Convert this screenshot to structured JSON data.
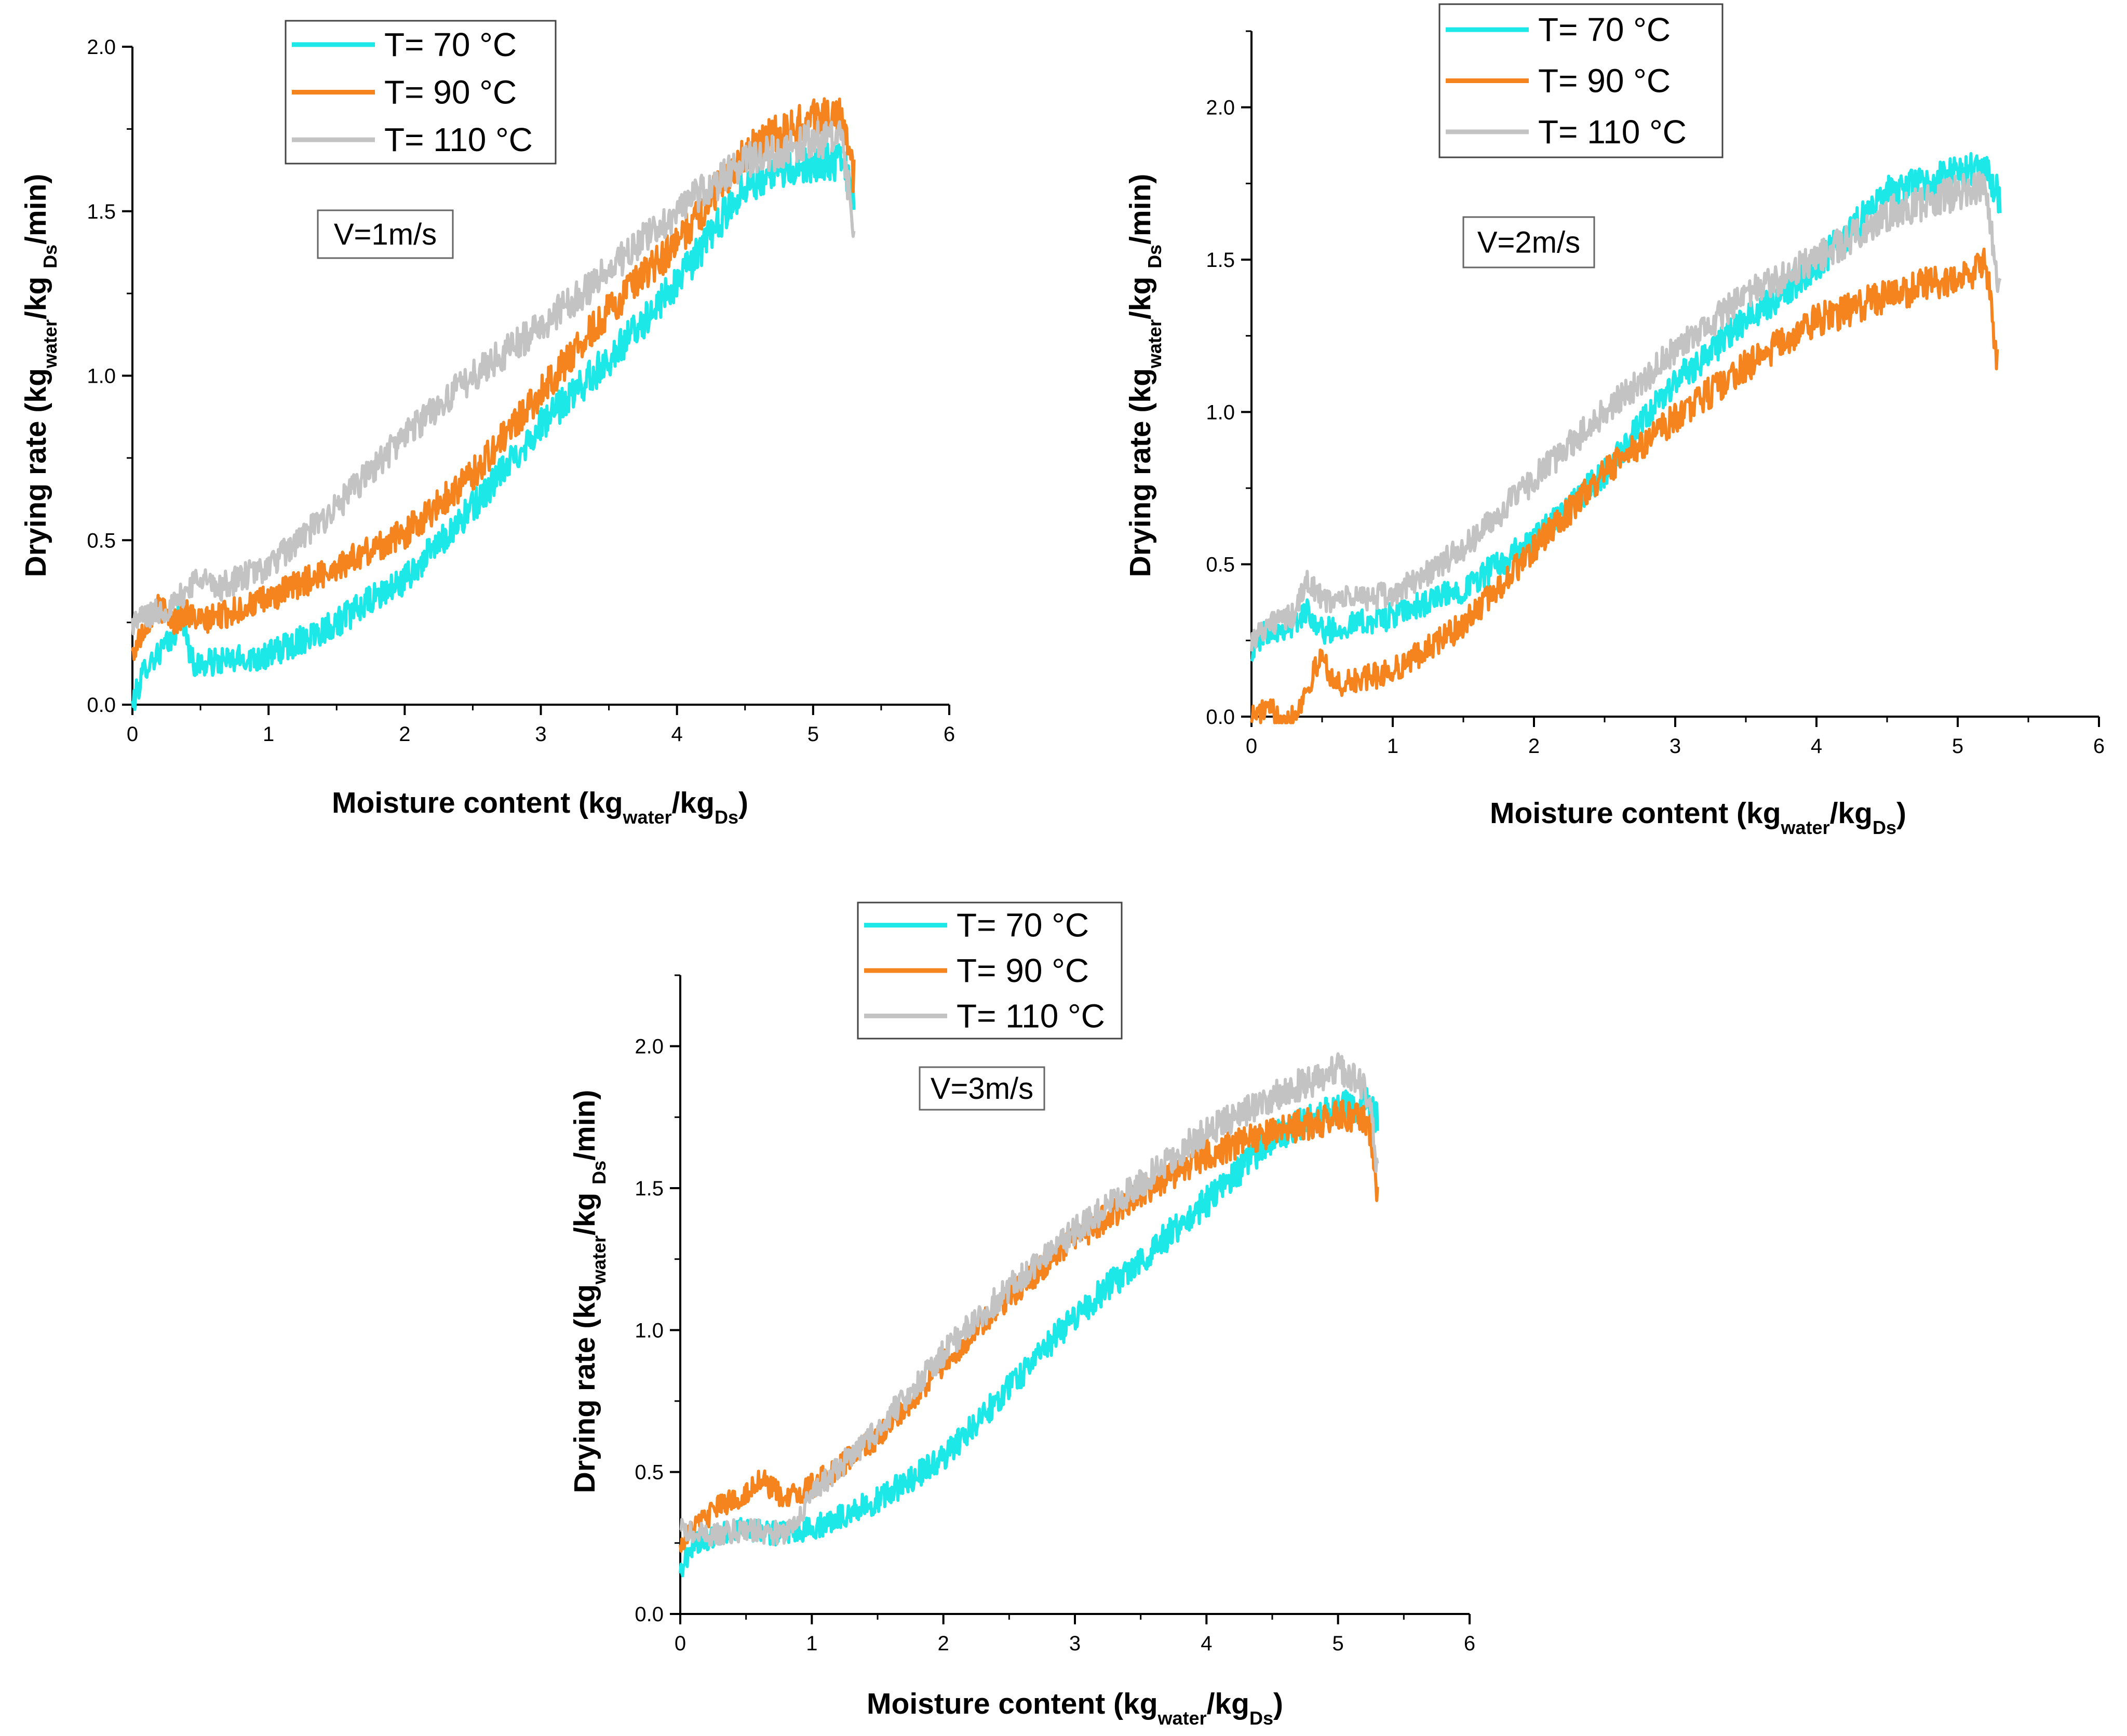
{
  "chart_data": [
    {
      "type": "line",
      "annotation": "V=1m/s",
      "xlabel": {
        "main": "Moisture content (kg",
        "sub1": "water",
        "mid": "/kg",
        "sub2": "Ds",
        "end": ")"
      },
      "ylabel": {
        "main": "Drying rate (kg",
        "sub1": "water",
        "mid": "/kg ",
        "sub2": "Ds",
        "end": "/min)"
      },
      "xlim": [
        0,
        6
      ],
      "ylim": [
        0,
        2.0
      ],
      "xticks": [
        "0",
        "1",
        "2",
        "3",
        "4",
        "5",
        "6"
      ],
      "yticks": [
        "0.0",
        "0.5",
        "1.0",
        "1.5",
        "2.0"
      ],
      "legend": [
        "T= 70 °C",
        "T= 90 °C",
        "T= 110 °C"
      ],
      "colors": [
        "#1de8e8",
        "#f5841f",
        "#c3c3c3"
      ],
      "series": [
        {
          "name": "T= 70 °C",
          "x": [
            0,
            0.1,
            0.3,
            0.35,
            0.4,
            0.45,
            1.0,
            1.5,
            2.0,
            2.5,
            3.0,
            3.5,
            4.0,
            4.5,
            5.0,
            5.2,
            5.25,
            5.3
          ],
          "y": [
            0.0,
            0.12,
            0.2,
            0.3,
            0.2,
            0.12,
            0.15,
            0.25,
            0.38,
            0.6,
            0.85,
            1.05,
            1.28,
            1.58,
            1.65,
            1.65,
            1.6,
            1.55
          ]
        },
        {
          "name": "T= 90 °C",
          "x": [
            0,
            0.1,
            0.2,
            0.3,
            0.4,
            0.5,
            1.0,
            1.5,
            2.0,
            2.5,
            3.0,
            3.5,
            4.0,
            4.5,
            4.8,
            5.0,
            5.2,
            5.25,
            5.3
          ],
          "y": [
            0.15,
            0.25,
            0.3,
            0.25,
            0.28,
            0.25,
            0.32,
            0.42,
            0.52,
            0.7,
            0.95,
            1.2,
            1.4,
            1.68,
            1.75,
            1.78,
            1.8,
            1.7,
            1.6
          ]
        },
        {
          "name": "T= 110 °C",
          "x": [
            0,
            0.1,
            0.3,
            0.4,
            0.5,
            0.6,
            1.0,
            1.5,
            2.0,
            2.5,
            3.0,
            3.5,
            4.0,
            4.5,
            5.0,
            5.2,
            5.25,
            5.3
          ],
          "y": [
            0.25,
            0.27,
            0.3,
            0.35,
            0.4,
            0.35,
            0.42,
            0.6,
            0.82,
            1.0,
            1.15,
            1.32,
            1.5,
            1.65,
            1.72,
            1.72,
            1.6,
            1.4
          ]
        }
      ]
    },
    {
      "type": "line",
      "annotation": "V=2m/s",
      "xlabel": {
        "main": "Moisture content (kg",
        "sub1": "water",
        "mid": "/kg",
        "sub2": "Ds",
        "end": ")"
      },
      "ylabel": {
        "main": "Drying rate (kg",
        "sub1": "water",
        "mid": "/kg ",
        "sub2": "Ds",
        "end": "/min)"
      },
      "xlim": [
        0,
        6
      ],
      "ylim": [
        0,
        2.25
      ],
      "xticks": [
        "0",
        "1",
        "2",
        "3",
        "4",
        "5",
        "6"
      ],
      "yticks": [
        "0.0",
        "0.5",
        "1.0",
        "1.5",
        "2.0"
      ],
      "legend": [
        "T= 70 °C",
        "T= 90 °C",
        "T= 110 °C"
      ],
      "colors": [
        "#1de8e8",
        "#f5841f",
        "#c3c3c3"
      ],
      "series": [
        {
          "name": "T= 70 °C",
          "x": [
            0,
            0.1,
            0.3,
            0.4,
            0.5,
            1.0,
            1.5,
            2.0,
            2.5,
            3.0,
            3.5,
            4.0,
            4.5,
            5.0,
            5.2,
            5.3
          ],
          "y": [
            0.22,
            0.28,
            0.3,
            0.35,
            0.28,
            0.33,
            0.42,
            0.58,
            0.8,
            1.1,
            1.3,
            1.48,
            1.72,
            1.78,
            1.8,
            1.7
          ]
        },
        {
          "name": "T= 90 °C",
          "x": [
            0,
            0.1,
            0.3,
            0.4,
            0.5,
            0.6,
            1.0,
            1.5,
            2.0,
            2.5,
            3.0,
            3.5,
            4.0,
            4.5,
            5.0,
            5.2,
            5.25,
            5.28
          ],
          "y": [
            0.0,
            0.02,
            0.0,
            0.1,
            0.2,
            0.1,
            0.15,
            0.3,
            0.55,
            0.8,
            0.98,
            1.15,
            1.3,
            1.38,
            1.45,
            1.48,
            1.3,
            1.15
          ]
        },
        {
          "name": "T= 110 °C",
          "x": [
            0,
            0.1,
            0.3,
            0.4,
            0.5,
            1.0,
            1.5,
            2.0,
            2.5,
            3.0,
            3.5,
            4.0,
            4.5,
            5.0,
            5.2,
            5.25,
            5.3
          ],
          "y": [
            0.25,
            0.3,
            0.33,
            0.45,
            0.38,
            0.4,
            0.55,
            0.78,
            1.0,
            1.2,
            1.38,
            1.5,
            1.65,
            1.72,
            1.75,
            1.55,
            1.4
          ]
        }
      ]
    },
    {
      "type": "line",
      "annotation": "V=3m/s",
      "xlabel": {
        "main": "Moisture content (kg",
        "sub1": "water",
        "mid": "/kg",
        "sub2": "Ds",
        "end": ")"
      },
      "ylabel": {
        "main": "Drying rate (kg",
        "sub1": "water",
        "mid": "/kg ",
        "sub2": "Ds",
        "end": "/min)"
      },
      "xlim": [
        0,
        6
      ],
      "ylim": [
        0,
        2.25
      ],
      "xticks": [
        "0",
        "1",
        "2",
        "3",
        "4",
        "5",
        "6"
      ],
      "yticks": [
        "0.0",
        "0.5",
        "1.0",
        "1.5",
        "2.0"
      ],
      "legend": [
        "T= 70 °C",
        "T= 90 °C",
        "T= 110 °C"
      ],
      "colors": [
        "#1de8e8",
        "#f5841f",
        "#c3c3c3"
      ],
      "series": [
        {
          "name": "T= 70 °C",
          "x": [
            0,
            0.1,
            0.3,
            0.5,
            0.8,
            1.0,
            1.5,
            2.0,
            2.5,
            3.0,
            3.5,
            4.0,
            4.5,
            5.0,
            5.2,
            5.3
          ],
          "y": [
            0.15,
            0.25,
            0.28,
            0.3,
            0.28,
            0.3,
            0.4,
            0.55,
            0.8,
            1.05,
            1.25,
            1.45,
            1.68,
            1.78,
            1.8,
            1.75
          ]
        },
        {
          "name": "T= 90 °C",
          "x": [
            0,
            0.1,
            0.3,
            0.5,
            0.6,
            0.8,
            1.0,
            1.5,
            2.0,
            2.5,
            3.0,
            3.5,
            4.0,
            4.5,
            5.0,
            5.2,
            5.25,
            5.3
          ],
          "y": [
            0.25,
            0.3,
            0.38,
            0.42,
            0.48,
            0.4,
            0.45,
            0.62,
            0.88,
            1.12,
            1.32,
            1.48,
            1.62,
            1.7,
            1.75,
            1.75,
            1.7,
            1.45
          ]
        },
        {
          "name": "T= 110 °C",
          "x": [
            0,
            0.1,
            0.3,
            0.5,
            0.8,
            1.0,
            1.5,
            2.0,
            2.5,
            3.0,
            3.5,
            4.0,
            4.5,
            4.8,
            5.0,
            5.2,
            5.25,
            5.3
          ],
          "y": [
            0.3,
            0.28,
            0.28,
            0.3,
            0.28,
            0.42,
            0.65,
            0.92,
            1.15,
            1.35,
            1.52,
            1.7,
            1.82,
            1.88,
            1.92,
            1.85,
            1.75,
            1.55
          ]
        }
      ]
    }
  ]
}
